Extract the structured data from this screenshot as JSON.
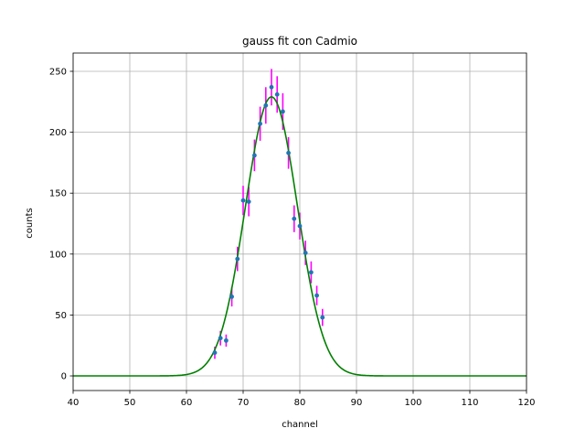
{
  "chart_data": {
    "type": "scatter",
    "title": "gauss fit con Cadmio",
    "xlabel": "channel",
    "ylabel": "counts",
    "xlim": [
      40,
      120
    ],
    "ylim": [
      -12,
      265
    ],
    "x_ticks": [
      40,
      50,
      60,
      70,
      80,
      90,
      100,
      110,
      120
    ],
    "y_ticks": [
      0,
      50,
      100,
      150,
      200,
      250
    ],
    "grid": true,
    "series": [
      {
        "kind": "errorbar",
        "color": "#1f77b4",
        "errorbar_color": "#ff00ff",
        "points": [
          {
            "x": 65,
            "y": 19,
            "err": 5
          },
          {
            "x": 66,
            "y": 31,
            "err": 6
          },
          {
            "x": 67,
            "y": 29,
            "err": 5
          },
          {
            "x": 68,
            "y": 65,
            "err": 8
          },
          {
            "x": 69,
            "y": 96,
            "err": 10
          },
          {
            "x": 70,
            "y": 144,
            "err": 12
          },
          {
            "x": 71,
            "y": 143,
            "err": 12
          },
          {
            "x": 72,
            "y": 181,
            "err": 13
          },
          {
            "x": 73,
            "y": 207,
            "err": 14
          },
          {
            "x": 74,
            "y": 222,
            "err": 15
          },
          {
            "x": 75,
            "y": 237,
            "err": 15
          },
          {
            "x": 76,
            "y": 231,
            "err": 15
          },
          {
            "x": 77,
            "y": 217,
            "err": 15
          },
          {
            "x": 78,
            "y": 183,
            "err": 13
          },
          {
            "x": 79,
            "y": 129,
            "err": 11
          },
          {
            "x": 80,
            "y": 123,
            "err": 11
          },
          {
            "x": 81,
            "y": 101,
            "err": 10
          },
          {
            "x": 82,
            "y": 85,
            "err": 9
          },
          {
            "x": 83,
            "y": 66,
            "err": 8
          },
          {
            "x": 84,
            "y": 48,
            "err": 7
          }
        ]
      },
      {
        "kind": "line",
        "color": "#008000",
        "model": "gaussian",
        "amplitude": 229,
        "mean": 75,
        "sigma": 4.6
      }
    ]
  }
}
